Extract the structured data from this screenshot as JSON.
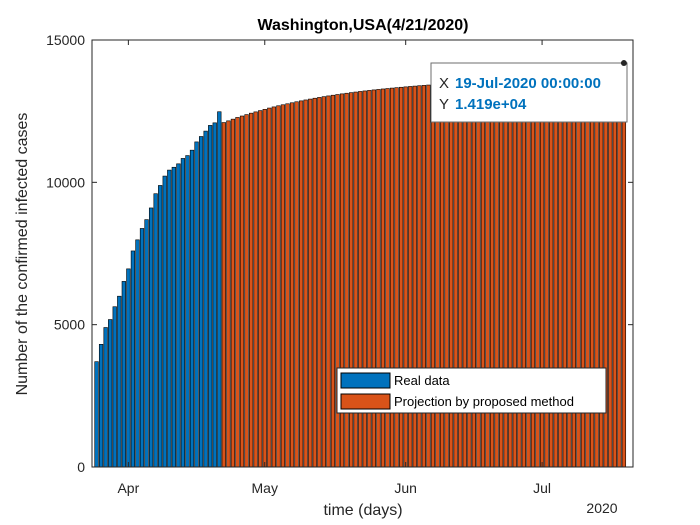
{
  "chart_data": {
    "type": "bar",
    "title": "Washington,USA(4/21/2020)",
    "xlabel": "time (days)",
    "ylabel": "Number of the confirmed infected cases",
    "ylim": [
      0,
      15000
    ],
    "xlim": [
      "2020-03-24",
      "2020-07-21"
    ],
    "yticks": [
      0,
      5000,
      10000,
      15000
    ],
    "ytick_labels": [
      "0",
      "5000",
      "10000",
      "15000"
    ],
    "xticks": [
      {
        "date": "2020-04-01",
        "label": "Apr"
      },
      {
        "date": "2020-05-01",
        "label": "May"
      },
      {
        "date": "2020-06-01",
        "label": "Jun"
      },
      {
        "date": "2020-07-01",
        "label": "Jul"
      }
    ],
    "x_secondary_label": "2020",
    "grid": false,
    "legend_position": "lower-right",
    "series": [
      {
        "name": "Real data",
        "color": "#0072bd",
        "start_date": "2020-03-25",
        "end_date": "2020-04-21",
        "values": [
          3700,
          4310,
          4900,
          5180,
          5630,
          6000,
          6520,
          6960,
          7590,
          7980,
          8380,
          8690,
          9100,
          9600,
          9890,
          10220,
          10430,
          10530,
          10650,
          10840,
          10940,
          11130,
          11420,
          11610,
          11800,
          12000,
          12090,
          12480
        ]
      },
      {
        "name": "Projection by proposed method",
        "color": "#d95319",
        "start_date": "2020-04-22",
        "end_date": "2020-07-19",
        "values": [
          12100,
          12160,
          12220,
          12280,
          12330,
          12380,
          12430,
          12475,
          12520,
          12565,
          12610,
          12650,
          12690,
          12725,
          12760,
          12795,
          12830,
          12862,
          12894,
          12925,
          12955,
          12983,
          13010,
          13036,
          13061,
          13085,
          13108,
          13130,
          13151,
          13172,
          13192,
          13211,
          13229,
          13247,
          13264,
          13280,
          13296,
          13311,
          13326,
          13340,
          13354,
          13368,
          13381,
          13394,
          13406,
          13418,
          13430,
          13441,
          13452,
          13463,
          13474,
          13484,
          13494,
          13504,
          13514,
          13523,
          13532,
          13541,
          13550,
          13559,
          13568,
          13577,
          13586,
          13595,
          13604,
          13613,
          13622,
          13632,
          13642,
          13652,
          13662,
          13673,
          13684,
          13696,
          13708,
          13721,
          13734,
          13748,
          13762,
          13777,
          13792,
          13808,
          13824,
          13841,
          13860,
          13880,
          13900,
          13920,
          14190
        ]
      }
    ],
    "datatip": {
      "x_key": "X",
      "x_value": "19-Jul-2020 00:00:00",
      "y_key": "Y",
      "y_value": "1.419e+04",
      "point_date": "2020-07-19",
      "point_value": 14190
    }
  }
}
